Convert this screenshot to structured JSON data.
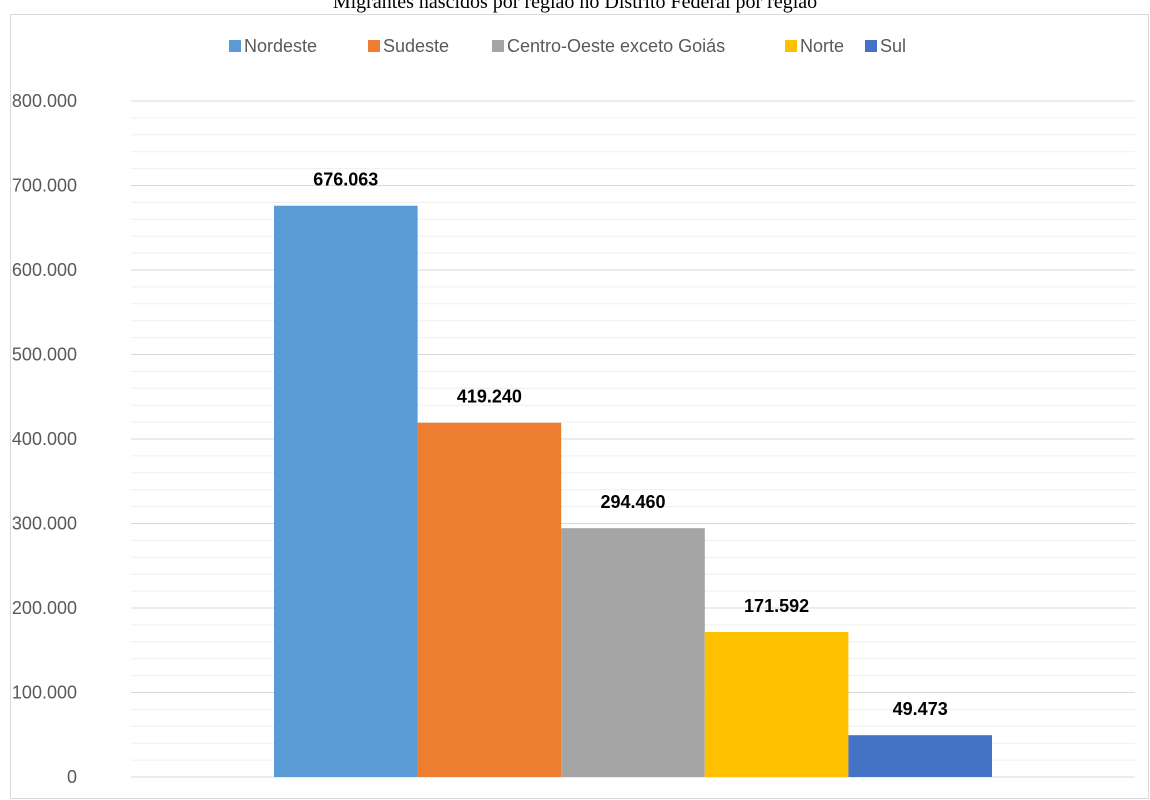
{
  "page": {
    "title": "Migrantes nascidos por região no Distrito Federal por região"
  },
  "chart_data": {
    "type": "bar",
    "title": "Migrantes nascidos por região no Distrito Federal por região",
    "categories": [
      ""
    ],
    "series": [
      {
        "name": "Nordeste",
        "values": [
          676063
        ],
        "label": "676.063",
        "color": "#5B9BD5"
      },
      {
        "name": "Sudeste",
        "values": [
          419240
        ],
        "label": "419.240",
        "color": "#ED7D31"
      },
      {
        "name": "Centro-Oeste exceto Goiás",
        "values": [
          294460
        ],
        "label": "294.460",
        "color": "#A5A5A5"
      },
      {
        "name": "Norte",
        "values": [
          171592
        ],
        "label": "171.592",
        "color": "#FFC000"
      },
      {
        "name": "Sul",
        "values": [
          49473
        ],
        "label": "49.473",
        "color": "#4472C4"
      }
    ],
    "ylim": [
      0,
      800000
    ],
    "yticks": [
      0,
      100000,
      200000,
      300000,
      400000,
      500000,
      600000,
      700000,
      800000
    ],
    "ytick_labels": [
      "0",
      "100.000",
      "200.000",
      "300.000",
      "400.000",
      "500.000",
      "600.000",
      "700.000",
      "800.000"
    ],
    "xlabel": "",
    "ylabel": "",
    "grid": true,
    "legend_position": "top"
  }
}
